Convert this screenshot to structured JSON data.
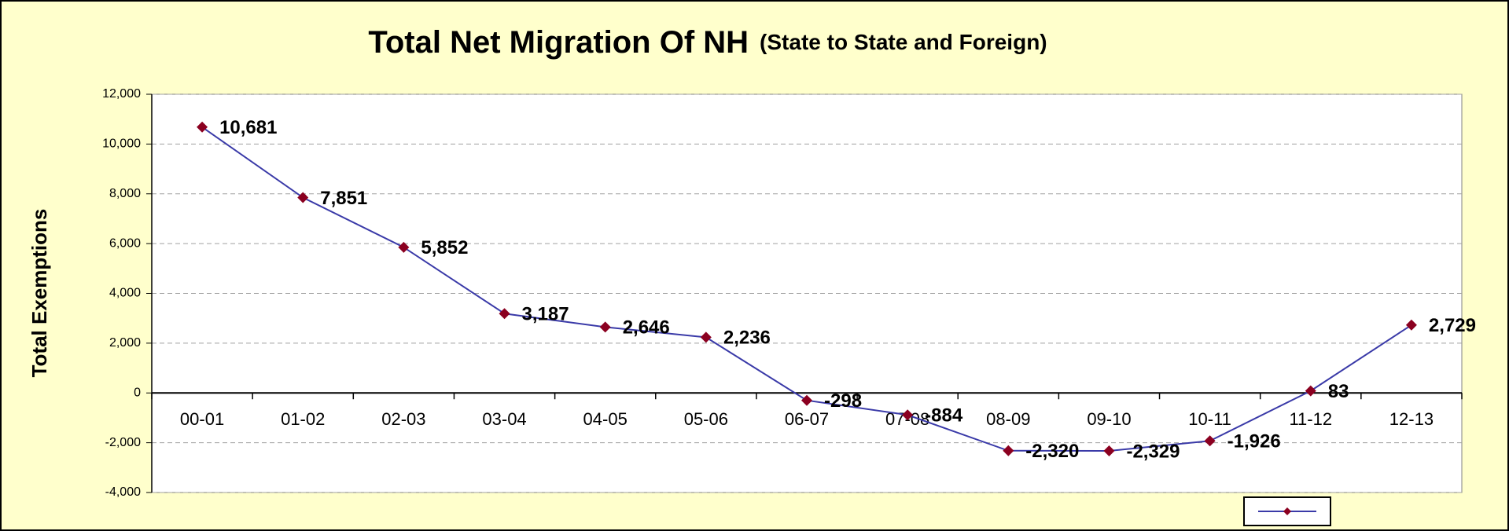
{
  "chart_data": {
    "type": "line",
    "title": "Total Net Migration Of NH",
    "subtitle": "(State to State and Foreign)",
    "y_label": "Total Exemptions",
    "categories": [
      "00-01",
      "01-02",
      "02-03",
      "03-04",
      "04-05",
      "05-06",
      "06-07",
      "07-08",
      "08-09",
      "09-10",
      "10-11",
      "11-12",
      "12-13"
    ],
    "series": [
      {
        "color": "#3a3aa8",
        "marker_color": "#8b0020",
        "values": [
          10681,
          7851,
          5852,
          3187,
          2646,
          2236,
          -298,
          -884,
          -2320,
          -2329,
          -1926,
          83,
          2729
        ],
        "value_labels": [
          "10,681",
          "7,851",
          "5,852",
          "3,187",
          "2,646",
          "2,236",
          "-298",
          "-884",
          "-2,320",
          "-2,329",
          "-1,926",
          "83",
          "2,729"
        ]
      }
    ],
    "ylim": [
      -4000,
      12000
    ],
    "yticks": [
      {
        "value": -4000,
        "label": "-4,000"
      },
      {
        "value": -2000,
        "label": "-2,000"
      },
      0,
      {
        "value": 2000,
        "label": "2,000"
      },
      {
        "value": 4000,
        "label": "4,000"
      },
      {
        "value": 6000,
        "label": "6,000"
      },
      {
        "value": 8000,
        "label": "8,000"
      },
      {
        "value": 10000,
        "label": "10,000"
      },
      {
        "value": 12000,
        "label": "12,000"
      }
    ],
    "grid": true
  }
}
